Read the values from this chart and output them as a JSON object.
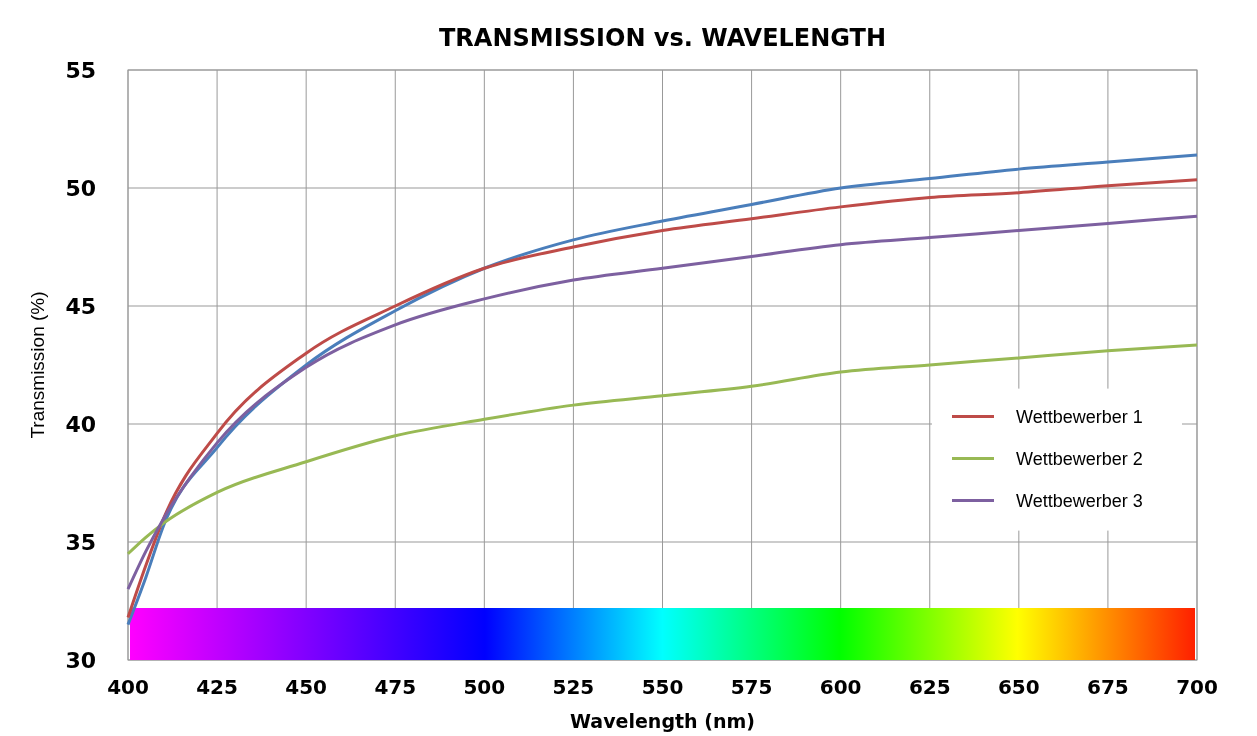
{
  "chart_data": {
    "type": "line",
    "title": "TRANSMISSION vs. WAVELENGTH",
    "xlabel": "Wavelength (nm)",
    "ylabel": "Transmission (%)",
    "x": [
      400,
      405,
      410,
      425,
      450,
      475,
      500,
      525,
      550,
      575,
      600,
      625,
      650,
      675,
      700
    ],
    "xlim": [
      400,
      700
    ],
    "xticks": [
      400,
      425,
      450,
      475,
      500,
      525,
      550,
      575,
      600,
      625,
      650,
      675,
      700
    ],
    "ylim": [
      30,
      55
    ],
    "yticks": [
      30,
      35,
      40,
      45,
      50,
      55
    ],
    "grid": true,
    "legend": "bottom right",
    "line_style": "solid",
    "series": [
      {
        "color": "#4a7ebb",
        "values": [
          31.5,
          33.5,
          35.7,
          39.0,
          42.5,
          44.8,
          46.6,
          47.8,
          48.6,
          49.3,
          50.0,
          50.4,
          50.8,
          51.1,
          51.4
        ]
      },
      {
        "name": "Wettbewerber 1",
        "color": "#be4b48",
        "values": [
          31.8,
          34.0,
          36.0,
          39.6,
          43.0,
          45.0,
          46.6,
          47.5,
          48.2,
          48.7,
          49.2,
          49.6,
          49.8,
          50.1,
          50.35
        ]
      },
      {
        "name": "Wettbewerber 2",
        "color": "#98b954",
        "values": [
          34.5,
          35.2,
          35.8,
          37.1,
          38.4,
          39.5,
          40.2,
          40.8,
          41.2,
          41.6,
          42.2,
          42.5,
          42.8,
          43.1,
          43.35
        ]
      },
      {
        "name": "Wettbewerber 3",
        "color": "#7d60a0",
        "values": [
          33.0,
          34.6,
          36.0,
          39.2,
          42.4,
          44.2,
          45.3,
          46.1,
          46.6,
          47.1,
          47.6,
          47.9,
          48.2,
          48.5,
          48.8
        ]
      }
    ]
  }
}
